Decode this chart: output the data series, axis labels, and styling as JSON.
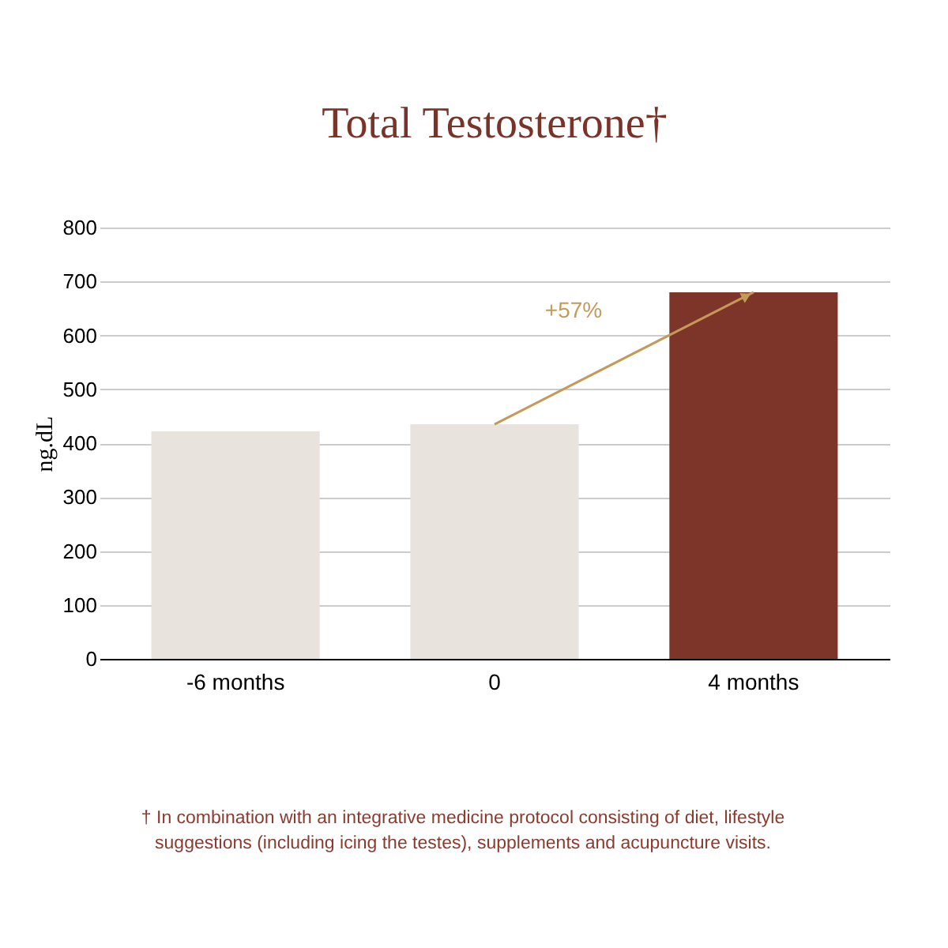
{
  "chart_data": {
    "type": "bar",
    "title": "Total Testosterone†",
    "ylabel": "ng.dL",
    "categories": [
      "-6 months",
      "0",
      "4 months"
    ],
    "values": [
      422,
      435,
      680
    ],
    "colors": [
      "#e8e3dc",
      "#e8e3dc",
      "#7d3529"
    ],
    "ylim": [
      0,
      800
    ],
    "yticks": [
      0,
      100,
      200,
      300,
      400,
      500,
      600,
      700,
      800
    ],
    "grid": "y",
    "annotations": [
      "+57%",
      "† In combination with an integrative medicine protocol consisting of diet, lifestyle suggestions (including icing the testes), supplements and acupuncture visits."
    ]
  }
}
